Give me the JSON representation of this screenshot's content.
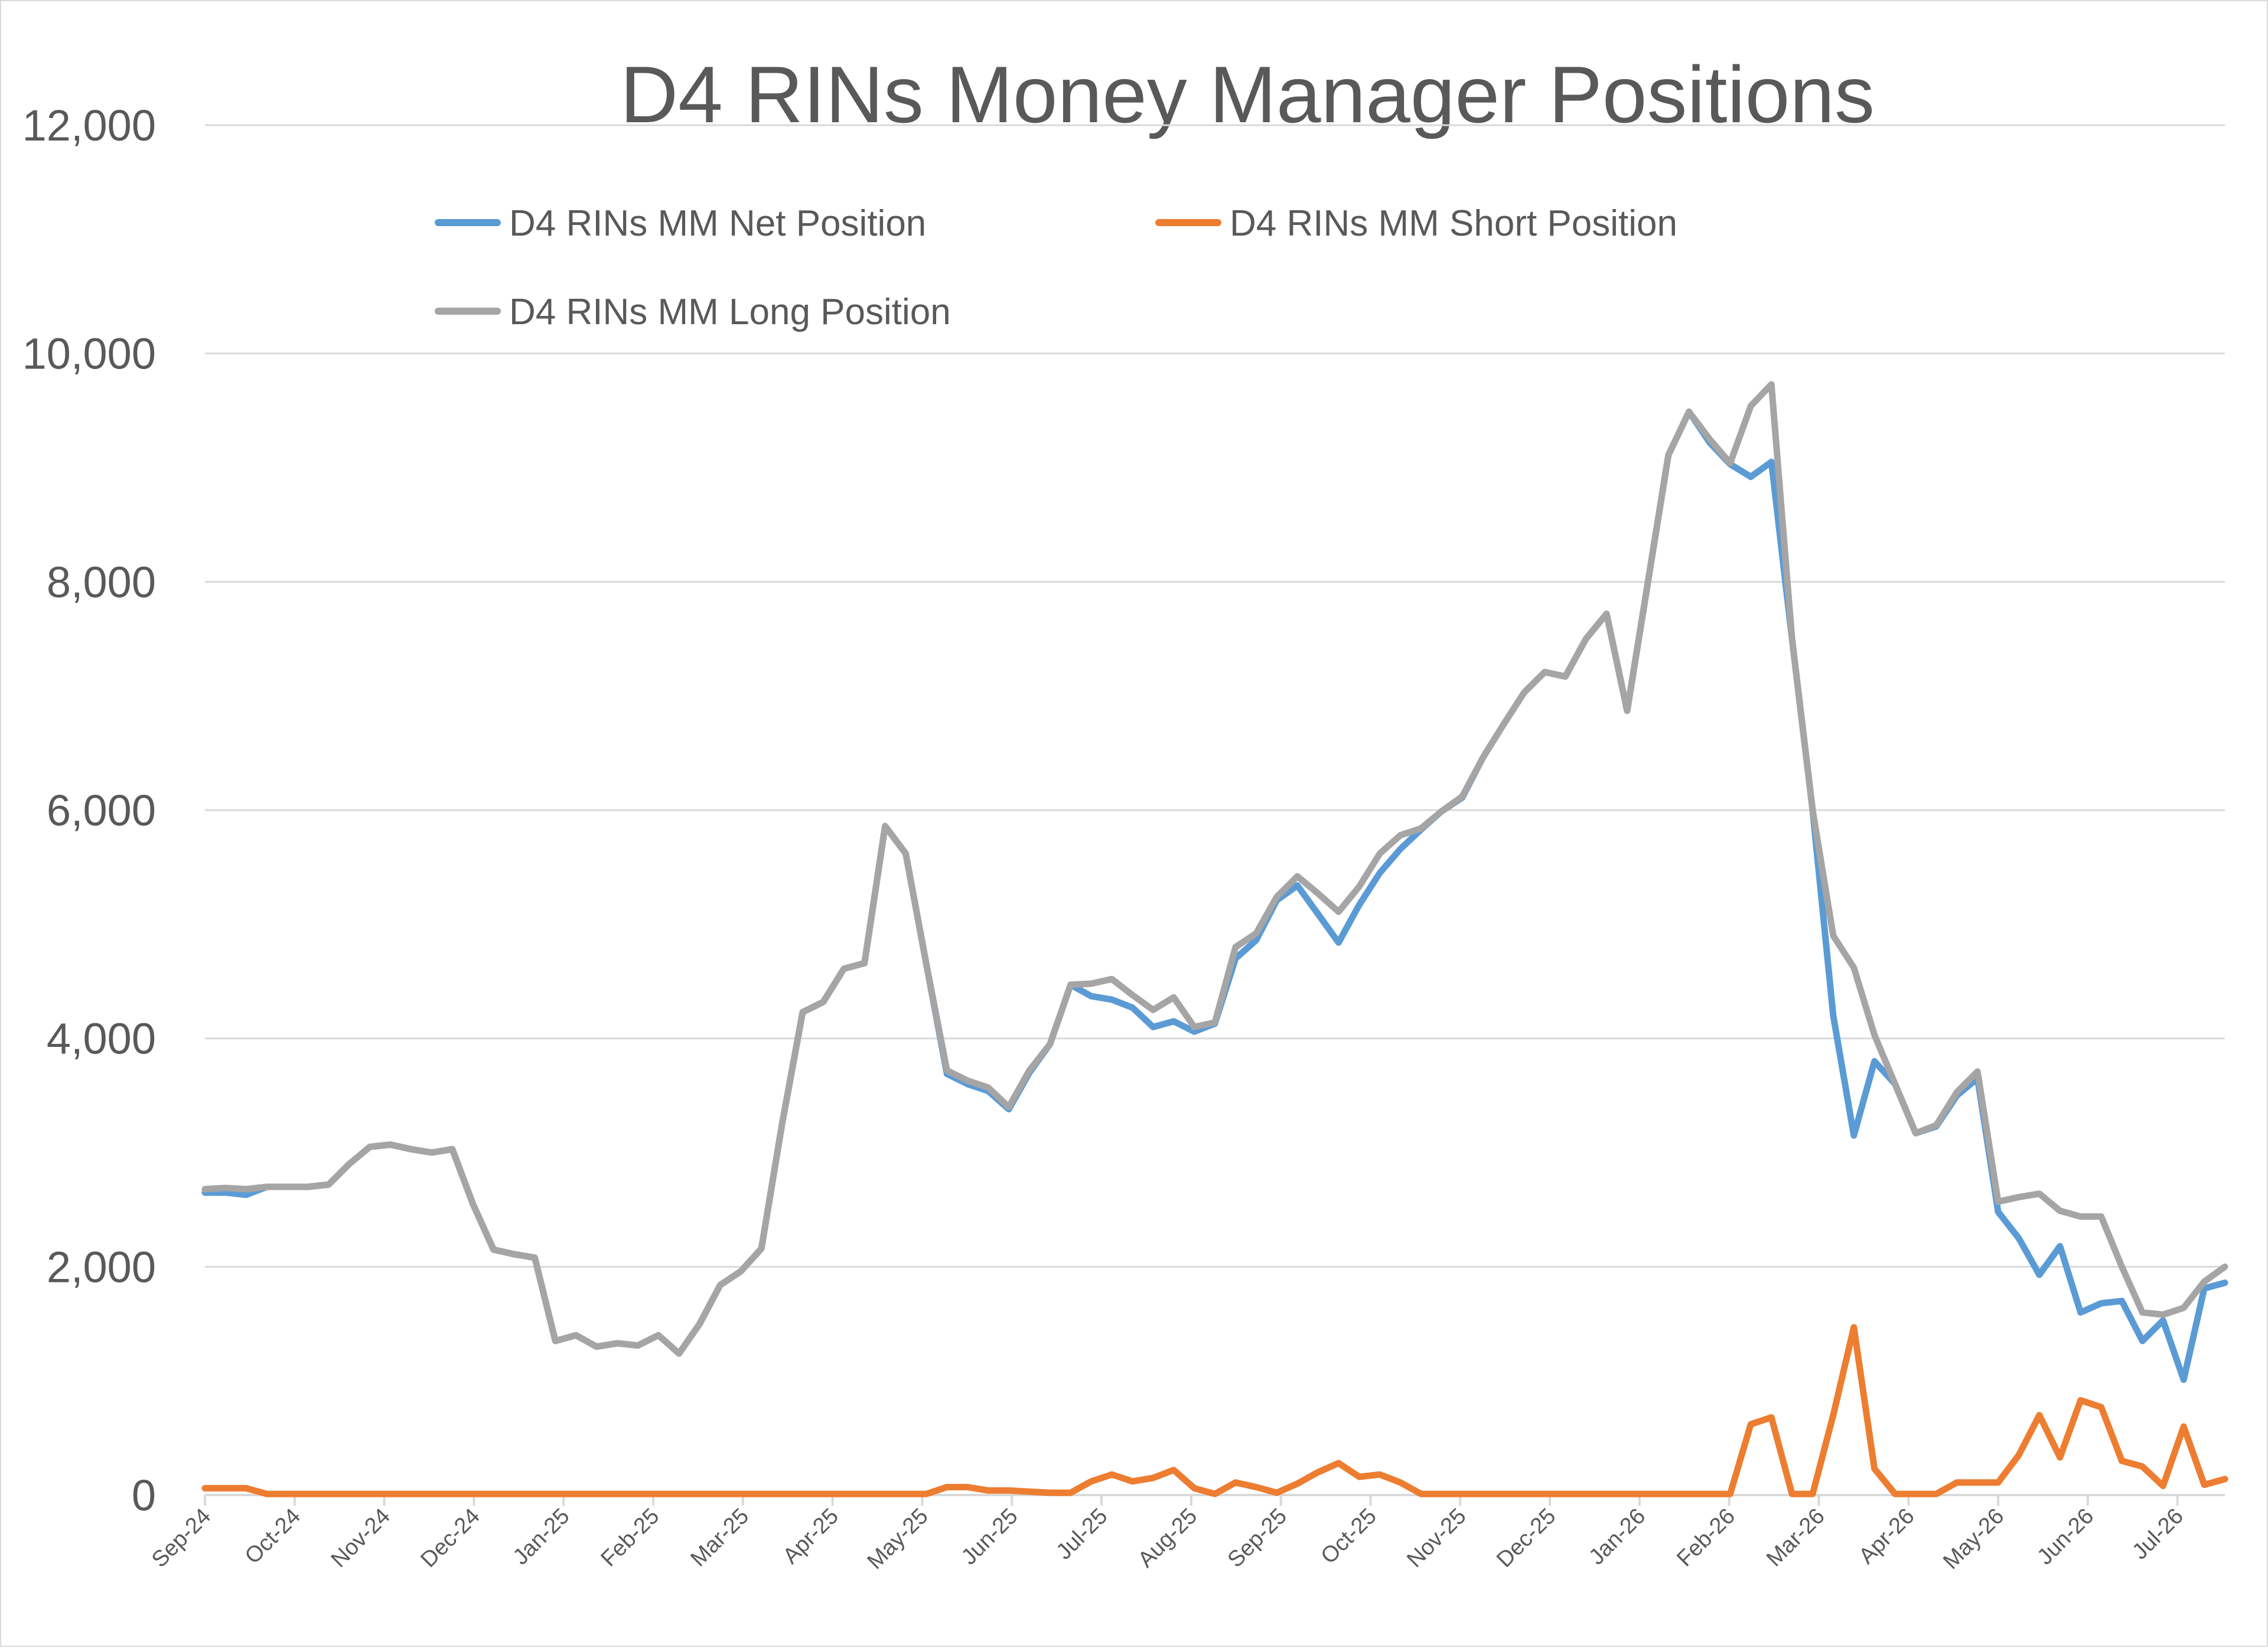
{
  "chart_data": {
    "type": "line",
    "title": "D4 RINs Money Manager Positions",
    "xlabel": "",
    "ylabel": "",
    "ylim": [
      0,
      12000
    ],
    "yticks": [
      "0",
      "2,000",
      "4,000",
      "6,000",
      "8,000",
      "10,000",
      "12,000"
    ],
    "grid": "horizontal",
    "legend_position": "top",
    "x_tick_labels": [
      "Sep-24",
      "Oct-24",
      "Nov-24",
      "Dec-24",
      "Jan-25",
      "Feb-25",
      "Mar-25",
      "Apr-25",
      "May-25",
      "Jun-25",
      "Jul-25",
      "Aug-25",
      "Sep-25",
      "Oct-25",
      "Nov-25",
      "Dec-25",
      "Jan-26",
      "Feb-26",
      "Mar-26",
      "Apr-26",
      "May-26",
      "Jun-26",
      "Jul-26"
    ],
    "series": [
      {
        "name": "D4 RINs MM Net Position",
        "color": "#5b9bd5",
        "values": [
          2650,
          2650,
          2630,
          2700,
          2700,
          2700,
          2720,
          2900,
          3050,
          3070,
          3030,
          3000,
          3030,
          2550,
          2150,
          2110,
          2080,
          1350,
          1400,
          1300,
          1330,
          1310,
          1400,
          1240,
          1500,
          1840,
          1960,
          2160,
          3250,
          4230,
          4320,
          4610,
          4660,
          5860,
          5620,
          4650,
          3690,
          3600,
          3540,
          3380,
          3700,
          3950,
          4470,
          4370,
          4340,
          4270,
          4100,
          4150,
          4060,
          4130,
          4700,
          4860,
          5210,
          5340,
          5090,
          4840,
          5170,
          5450,
          5660,
          5830,
          5990,
          6110,
          6460,
          6750,
          7030,
          7210,
          7170,
          7500,
          7720,
          6870,
          7990,
          9110,
          9490,
          9220,
          9030,
          8920,
          9050,
          7500,
          6000,
          4200,
          3150,
          3800,
          3600,
          3170,
          3230,
          3500,
          3650,
          2480,
          2250,
          1930,
          2180,
          1600,
          1680,
          1700,
          1350,
          1530,
          1010,
          1810,
          1860
        ]
      },
      {
        "name": "D4 RINs MM Short Position",
        "color": "#ed7d31",
        "values": [
          60,
          60,
          60,
          10,
          10,
          10,
          10,
          10,
          10,
          10,
          10,
          10,
          10,
          10,
          10,
          10,
          10,
          10,
          10,
          10,
          10,
          10,
          10,
          10,
          10,
          10,
          10,
          10,
          10,
          10,
          10,
          10,
          10,
          10,
          10,
          10,
          70,
          70,
          40,
          40,
          30,
          20,
          20,
          120,
          180,
          120,
          150,
          220,
          60,
          10,
          110,
          70,
          20,
          100,
          200,
          280,
          160,
          180,
          110,
          10,
          10,
          10,
          10,
          10,
          10,
          10,
          10,
          10,
          10,
          10,
          10,
          10,
          10,
          10,
          10,
          620,
          680,
          10,
          10,
          700,
          1470,
          230,
          10,
          10,
          10,
          110,
          110,
          110,
          350,
          700,
          330,
          830,
          770,
          300,
          250,
          80,
          600,
          90,
          140
        ]
      },
      {
        "name": "D4 RINs MM Long Position",
        "color": "#a5a5a5",
        "values": [
          2680,
          2690,
          2680,
          2700,
          2700,
          2700,
          2720,
          2900,
          3050,
          3070,
          3030,
          3000,
          3030,
          2550,
          2150,
          2110,
          2080,
          1350,
          1400,
          1300,
          1330,
          1310,
          1400,
          1240,
          1500,
          1840,
          1960,
          2160,
          3250,
          4230,
          4320,
          4610,
          4660,
          5860,
          5620,
          4650,
          3720,
          3630,
          3570,
          3400,
          3720,
          3950,
          4470,
          4480,
          4520,
          4380,
          4250,
          4360,
          4100,
          4140,
          4800,
          4920,
          5240,
          5420,
          5270,
          5110,
          5330,
          5620,
          5780,
          5840,
          5990,
          6120,
          6460,
          6750,
          7030,
          7210,
          7170,
          7500,
          7720,
          6870,
          7990,
          9110,
          9490,
          9250,
          9040,
          9540,
          9730,
          7500,
          6000,
          4900,
          4620,
          4030,
          3600,
          3170,
          3240,
          3530,
          3710,
          2570,
          2610,
          2640,
          2490,
          2440,
          2440,
          2000,
          1600,
          1580,
          1640,
          1870,
          2000
        ]
      }
    ]
  }
}
